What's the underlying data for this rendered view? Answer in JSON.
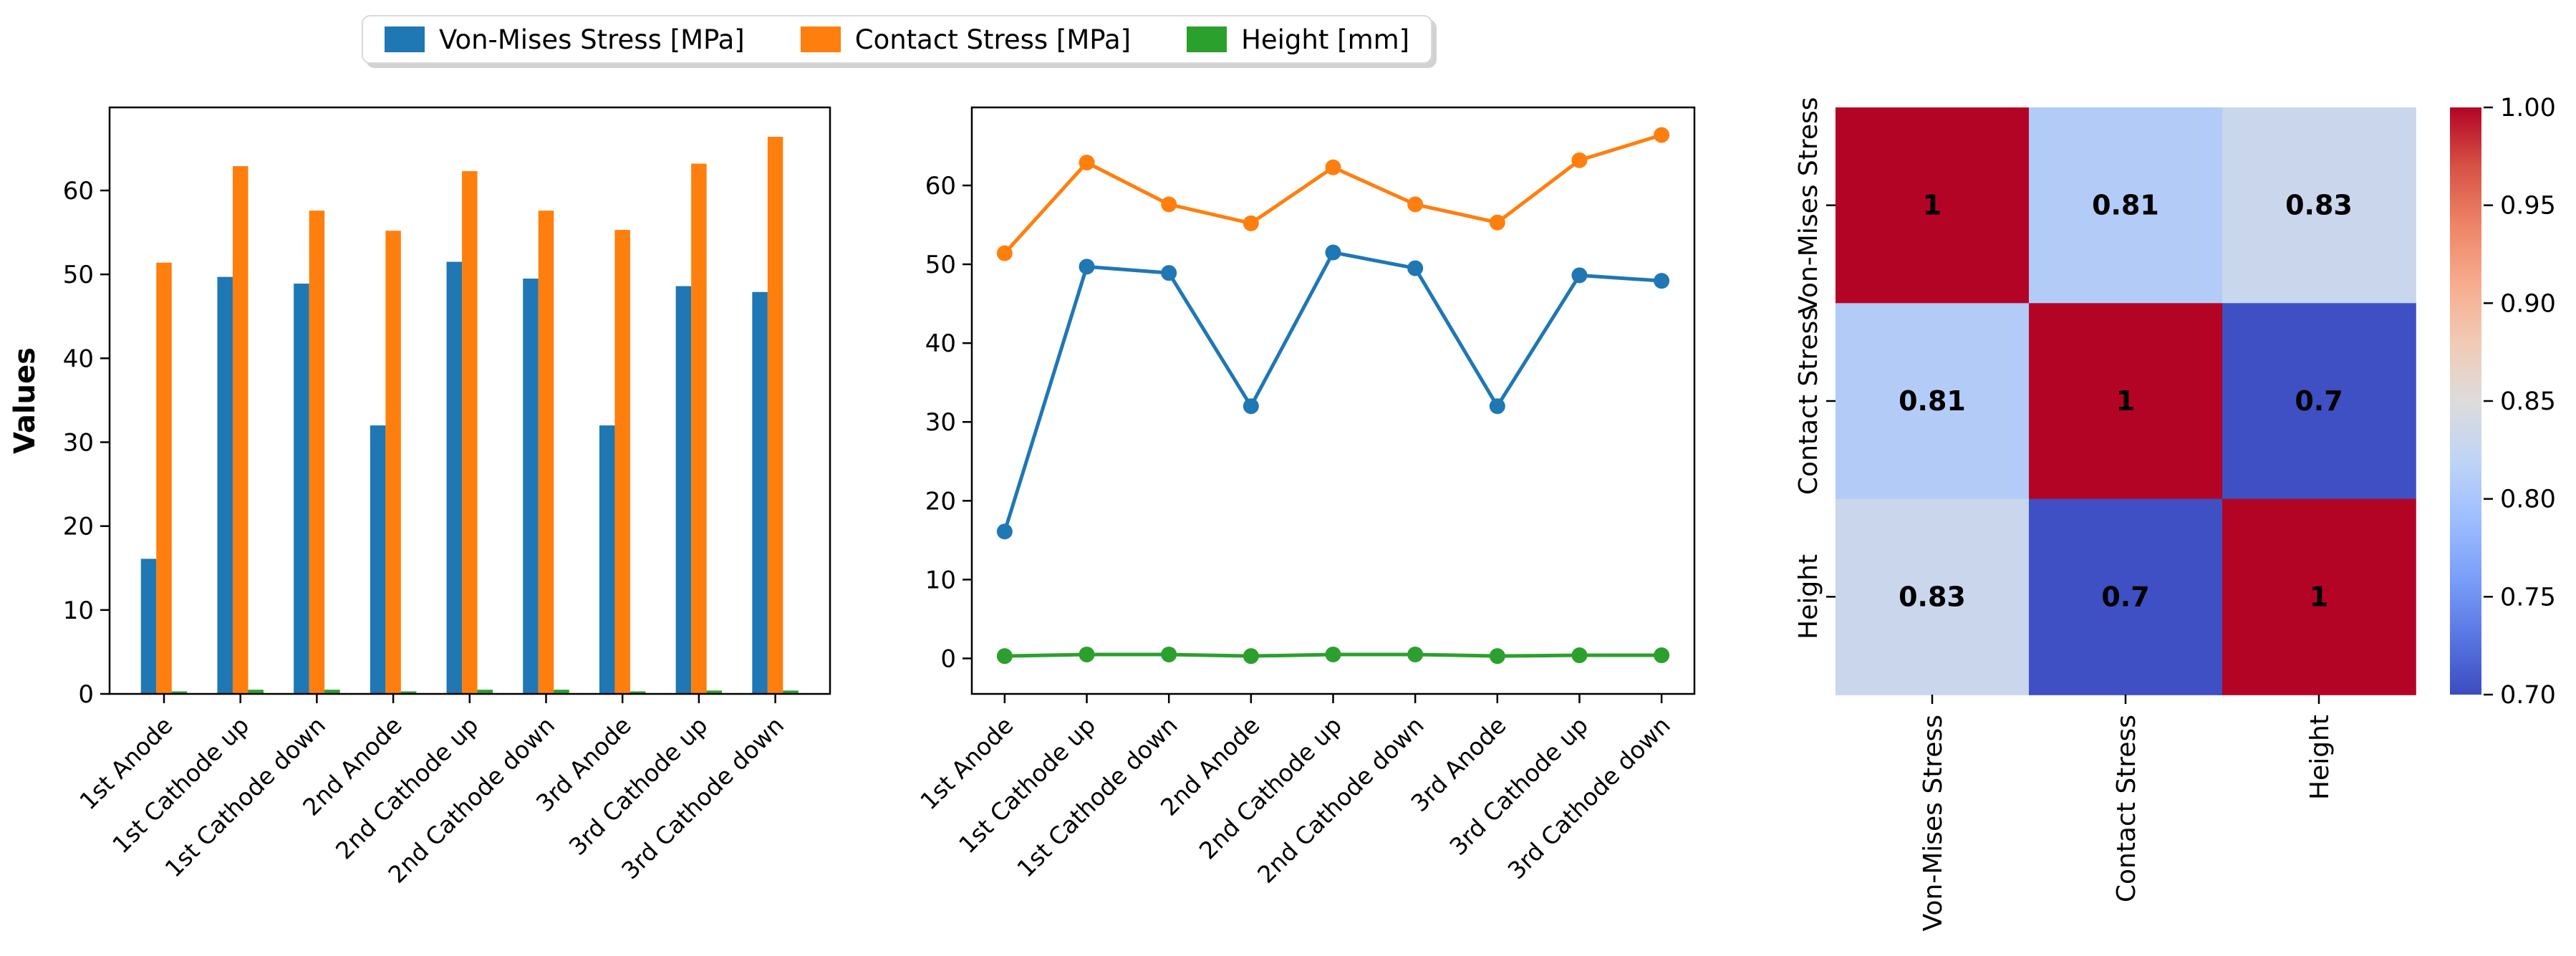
{
  "legend": {
    "items": [
      {
        "label": "Von-Mises Stress [MPa]",
        "color": "#1f77b4"
      },
      {
        "label": "Contact Stress [MPa]",
        "color": "#ff7f0e"
      },
      {
        "label": "Height [mm]",
        "color": "#2ca02c"
      }
    ]
  },
  "chart_data": [
    {
      "type": "bar",
      "title": "",
      "xlabel": "",
      "ylabel": "Values",
      "categories": [
        "1st Anode",
        "1st Cathode up",
        "1st Cathode down",
        "2nd Anode",
        "2nd Cathode up",
        "2nd Cathode down",
        "3rd Anode",
        "3rd Cathode up",
        "3rd Cathode down"
      ],
      "series": [
        {
          "name": "Von-Mises Stress [MPa]",
          "color": "#1f77b4",
          "values": [
            16.1,
            49.7,
            48.9,
            32.0,
            51.5,
            49.5,
            32.0,
            48.6,
            47.9
          ]
        },
        {
          "name": "Contact Stress [MPa]",
          "color": "#ff7f0e",
          "values": [
            51.4,
            62.9,
            57.6,
            55.2,
            62.3,
            57.6,
            55.3,
            63.2,
            66.4
          ]
        },
        {
          "name": "Height [mm]",
          "color": "#2ca02c",
          "values": [
            0.3,
            0.5,
            0.5,
            0.3,
            0.5,
            0.5,
            0.3,
            0.4,
            0.4
          ]
        }
      ],
      "yticks": [
        0,
        10,
        20,
        30,
        40,
        50,
        60
      ],
      "ylim": [
        0,
        69.9
      ],
      "grid": false,
      "legend_position": "figure-top-center"
    },
    {
      "type": "line",
      "title": "",
      "xlabel": "",
      "ylabel": "",
      "marker": "circle",
      "categories": [
        "1st Anode",
        "1st Cathode up",
        "1st Cathode down",
        "2nd Anode",
        "2nd Cathode up",
        "2nd Cathode down",
        "3rd Anode",
        "3rd Cathode up",
        "3rd Cathode down"
      ],
      "series": [
        {
          "name": "Von-Mises Stress [MPa]",
          "color": "#1f77b4",
          "values": [
            16.1,
            49.7,
            48.9,
            32.0,
            51.5,
            49.5,
            32.0,
            48.6,
            47.9
          ]
        },
        {
          "name": "Contact Stress [MPa]",
          "color": "#ff7f0e",
          "values": [
            51.4,
            62.9,
            57.6,
            55.2,
            62.3,
            57.6,
            55.3,
            63.2,
            66.4
          ]
        },
        {
          "name": "Height [mm]",
          "color": "#2ca02c",
          "values": [
            0.3,
            0.5,
            0.5,
            0.3,
            0.5,
            0.5,
            0.3,
            0.4,
            0.4
          ]
        }
      ],
      "yticks": [
        0,
        10,
        20,
        30,
        40,
        50,
        60
      ],
      "ylim": [
        -4.5,
        69.9
      ],
      "grid": false
    },
    {
      "type": "heatmap",
      "title": "",
      "labels": [
        "Von-Mises Stress",
        "Contact Stress",
        "Height"
      ],
      "matrix": [
        [
          1.0,
          0.81,
          0.83
        ],
        [
          0.81,
          1.0,
          0.7
        ],
        [
          0.83,
          0.7,
          1.0
        ]
      ],
      "cell_labels": [
        [
          "1",
          "0.81",
          "0.83"
        ],
        [
          "0.81",
          "1",
          "0.7"
        ],
        [
          "0.83",
          "0.7",
          "1"
        ]
      ],
      "cell_colors": [
        [
          "#b40426",
          "#b2cbf7",
          "#c9d6ec"
        ],
        [
          "#b2cbf7",
          "#b40426",
          "#3e50c3"
        ],
        [
          "#c9d6ec",
          "#3e50c3",
          "#b40426"
        ]
      ],
      "cell_text_colors": [
        [
          "#ffffff",
          "#111111",
          "#111111"
        ],
        [
          "#111111",
          "#ffffff",
          "#ffffff"
        ],
        [
          "#111111",
          "#ffffff",
          "#ffffff"
        ]
      ],
      "colorbar": {
        "colormap": "coolwarm",
        "vmin": 0.7,
        "vmax": 1.0,
        "ticks": [
          "1.00",
          "0.95",
          "0.90",
          "0.85",
          "0.80",
          "0.75",
          "0.70"
        ],
        "gradient_top_to_bottom": [
          "#b40426",
          "#d65244",
          "#ee8468",
          "#f7ac8e",
          "#f2cab5",
          "#dddcdc",
          "#c0d4f5",
          "#9ebeff",
          "#7b9ff9",
          "#5977e3",
          "#3b4cc0"
        ]
      }
    }
  ]
}
